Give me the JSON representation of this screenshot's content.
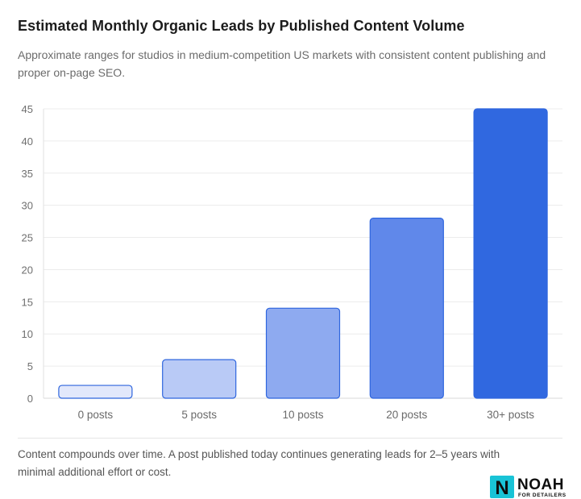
{
  "header": {
    "title": "Estimated Monthly Organic Leads by Published Content Volume",
    "subtitle": "Approximate ranges for studios in medium-competition US markets with consistent content publishing and proper on-page SEO."
  },
  "chart_data": {
    "type": "bar",
    "categories": [
      "0 posts",
      "5 posts",
      "10 posts",
      "20 posts",
      "30+ posts"
    ],
    "series": [
      {
        "values": [
          2,
          6,
          14,
          28,
          45
        ]
      }
    ],
    "ylim": [
      0,
      45
    ],
    "yticks": [
      0,
      5,
      10,
      15,
      20,
      25,
      30,
      35,
      40,
      45
    ],
    "grid": true,
    "bar_colors": [
      "#e2e8fb",
      "#b9caf6",
      "#8eaaf0",
      "#6088ea",
      "#3068e0"
    ],
    "bar_stroke": "#2f66de",
    "xlabel": "",
    "ylabel": ""
  },
  "footer": {
    "note": "Content compounds over time. A post published today continues generating leads for 2–5 years with minimal additional effort or cost."
  },
  "logo": {
    "mark_letter": "N",
    "word": "NOAH",
    "tagline": "FOR DETAILERS",
    "accent_color": "#19c3d6"
  }
}
